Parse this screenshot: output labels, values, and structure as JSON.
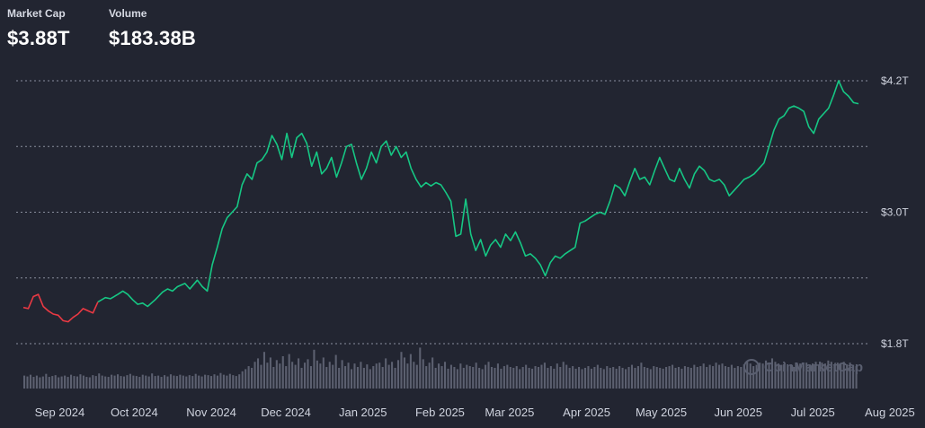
{
  "stats": {
    "market_cap_label": "Market Cap",
    "market_cap_value": "$3.88T",
    "volume_label": "Volume",
    "volume_value": "$183.38B"
  },
  "watermark": "CoinMarketCap",
  "colors": {
    "up": "#16c784",
    "down": "#ea3943",
    "grid": "#8a8f9e",
    "volume": "#5c6070"
  },
  "chart_data": {
    "type": "line",
    "y_ticks": [
      "$4.2T",
      "$3.0T",
      "$1.8T"
    ],
    "y_tick_values": [
      4.2,
      3.0,
      1.8
    ],
    "ylim": [
      1.8,
      4.2
    ],
    "x_ticks": [
      "Sep 2024",
      "Oct 2024",
      "Nov 2024",
      "Dec 2024",
      "Jan 2025",
      "Feb 2025",
      "Mar 2025",
      "Apr 2025",
      "May 2025",
      "Jun 2025",
      "Jul 2025",
      "Aug 2025"
    ],
    "x_tick_days": [
      11,
      41,
      72,
      102,
      133,
      164,
      192,
      223,
      253,
      284,
      314,
      345
    ],
    "grid": true,
    "series": [
      {
        "points": [
          [
            0,
            2.13
          ],
          [
            2,
            2.12
          ],
          [
            4,
            2.23
          ],
          [
            6,
            2.25
          ],
          [
            8,
            2.14
          ],
          [
            10,
            2.1
          ],
          [
            12,
            2.07
          ],
          [
            14,
            2.06
          ],
          [
            16,
            2.01
          ],
          [
            18,
            2.0
          ],
          [
            20,
            2.04
          ],
          [
            22,
            2.07
          ],
          [
            24,
            2.12
          ],
          [
            26,
            2.1
          ],
          [
            28,
            2.08
          ],
          [
            30,
            2.18
          ],
          [
            33,
            2.22
          ],
          [
            35,
            2.21
          ],
          [
            38,
            2.25
          ],
          [
            40,
            2.28
          ],
          [
            42,
            2.25
          ],
          [
            44,
            2.2
          ],
          [
            46,
            2.16
          ],
          [
            48,
            2.17
          ],
          [
            50,
            2.14
          ],
          [
            53,
            2.2
          ],
          [
            56,
            2.27
          ],
          [
            58,
            2.3
          ],
          [
            60,
            2.28
          ],
          [
            62,
            2.32
          ],
          [
            65,
            2.35
          ],
          [
            67,
            2.3
          ],
          [
            70,
            2.38
          ],
          [
            72,
            2.32
          ],
          [
            74,
            2.28
          ],
          [
            76,
            2.52
          ],
          [
            78,
            2.68
          ],
          [
            80,
            2.85
          ],
          [
            82,
            2.95
          ],
          [
            84,
            3.0
          ],
          [
            86,
            3.05
          ],
          [
            88,
            3.25
          ],
          [
            90,
            3.35
          ],
          [
            92,
            3.3
          ],
          [
            94,
            3.45
          ],
          [
            96,
            3.48
          ],
          [
            98,
            3.55
          ],
          [
            100,
            3.7
          ],
          [
            102,
            3.62
          ],
          [
            104,
            3.48
          ],
          [
            106,
            3.72
          ],
          [
            108,
            3.5
          ],
          [
            110,
            3.68
          ],
          [
            112,
            3.72
          ],
          [
            114,
            3.63
          ],
          [
            116,
            3.42
          ],
          [
            118,
            3.55
          ],
          [
            120,
            3.35
          ],
          [
            122,
            3.4
          ],
          [
            124,
            3.5
          ],
          [
            126,
            3.32
          ],
          [
            128,
            3.45
          ],
          [
            130,
            3.6
          ],
          [
            132,
            3.62
          ],
          [
            134,
            3.45
          ],
          [
            136,
            3.3
          ],
          [
            138,
            3.4
          ],
          [
            140,
            3.55
          ],
          [
            142,
            3.45
          ],
          [
            144,
            3.6
          ],
          [
            146,
            3.65
          ],
          [
            148,
            3.52
          ],
          [
            150,
            3.6
          ],
          [
            152,
            3.5
          ],
          [
            154,
            3.55
          ],
          [
            156,
            3.4
          ],
          [
            158,
            3.3
          ],
          [
            160,
            3.23
          ],
          [
            162,
            3.27
          ],
          [
            164,
            3.24
          ],
          [
            166,
            3.27
          ],
          [
            168,
            3.25
          ],
          [
            170,
            3.18
          ],
          [
            172,
            3.1
          ],
          [
            174,
            2.78
          ],
          [
            176,
            2.8
          ],
          [
            178,
            3.12
          ],
          [
            180,
            2.8
          ],
          [
            182,
            2.65
          ],
          [
            184,
            2.75
          ],
          [
            186,
            2.6
          ],
          [
            188,
            2.7
          ],
          [
            190,
            2.75
          ],
          [
            192,
            2.68
          ],
          [
            194,
            2.8
          ],
          [
            196,
            2.74
          ],
          [
            198,
            2.82
          ],
          [
            200,
            2.72
          ],
          [
            202,
            2.6
          ],
          [
            204,
            2.62
          ],
          [
            206,
            2.58
          ],
          [
            208,
            2.52
          ],
          [
            210,
            2.42
          ],
          [
            212,
            2.54
          ],
          [
            214,
            2.6
          ],
          [
            216,
            2.58
          ],
          [
            218,
            2.62
          ],
          [
            220,
            2.65
          ],
          [
            222,
            2.68
          ],
          [
            224,
            2.9
          ],
          [
            226,
            2.92
          ],
          [
            228,
            2.95
          ],
          [
            230,
            2.98
          ],
          [
            232,
            3.0
          ],
          [
            234,
            2.98
          ],
          [
            236,
            3.1
          ],
          [
            238,
            3.25
          ],
          [
            240,
            3.22
          ],
          [
            242,
            3.15
          ],
          [
            244,
            3.28
          ],
          [
            246,
            3.4
          ],
          [
            248,
            3.3
          ],
          [
            250,
            3.32
          ],
          [
            252,
            3.25
          ],
          [
            254,
            3.38
          ],
          [
            256,
            3.5
          ],
          [
            258,
            3.4
          ],
          [
            260,
            3.3
          ],
          [
            262,
            3.28
          ],
          [
            264,
            3.4
          ],
          [
            266,
            3.3
          ],
          [
            268,
            3.22
          ],
          [
            270,
            3.35
          ],
          [
            272,
            3.42
          ],
          [
            274,
            3.38
          ],
          [
            276,
            3.3
          ],
          [
            278,
            3.28
          ],
          [
            280,
            3.3
          ],
          [
            282,
            3.25
          ],
          [
            284,
            3.15
          ],
          [
            286,
            3.2
          ],
          [
            288,
            3.25
          ],
          [
            290,
            3.3
          ],
          [
            292,
            3.32
          ],
          [
            294,
            3.35
          ],
          [
            296,
            3.4
          ],
          [
            298,
            3.45
          ],
          [
            300,
            3.6
          ],
          [
            302,
            3.75
          ],
          [
            304,
            3.85
          ],
          [
            306,
            3.88
          ],
          [
            308,
            3.95
          ],
          [
            310,
            3.97
          ],
          [
            312,
            3.95
          ],
          [
            314,
            3.92
          ],
          [
            316,
            3.78
          ],
          [
            318,
            3.72
          ],
          [
            320,
            3.85
          ],
          [
            322,
            3.9
          ],
          [
            324,
            3.95
          ],
          [
            326,
            4.07
          ],
          [
            328,
            4.2
          ],
          [
            330,
            4.1
          ],
          [
            332,
            4.06
          ],
          [
            334,
            4.0
          ],
          [
            336,
            3.99
          ]
        ]
      }
    ],
    "down_until_day": 30,
    "volume_bars": [
      0.3,
      0.28,
      0.32,
      0.27,
      0.3,
      0.26,
      0.28,
      0.34,
      0.27,
      0.29,
      0.31,
      0.26,
      0.28,
      0.3,
      0.27,
      0.32,
      0.29,
      0.28,
      0.33,
      0.3,
      0.27,
      0.26,
      0.31,
      0.29,
      0.35,
      0.3,
      0.28,
      0.27,
      0.32,
      0.3,
      0.33,
      0.29,
      0.28,
      0.31,
      0.34,
      0.3,
      0.29,
      0.27,
      0.32,
      0.3,
      0.28,
      0.35,
      0.29,
      0.3,
      0.27,
      0.31,
      0.28,
      0.33,
      0.3,
      0.29,
      0.32,
      0.3,
      0.28,
      0.31,
      0.29,
      0.34,
      0.3,
      0.28,
      0.32,
      0.31,
      0.29,
      0.33,
      0.3,
      0.36,
      0.32,
      0.3,
      0.34,
      0.31,
      0.29,
      0.33,
      0.4,
      0.45,
      0.52,
      0.48,
      0.62,
      0.7,
      0.55,
      0.85,
      0.6,
      0.72,
      0.5,
      0.66,
      0.58,
      0.75,
      0.52,
      0.8,
      0.62,
      0.55,
      0.7,
      0.48,
      0.6,
      0.68,
      0.52,
      0.9,
      0.65,
      0.58,
      0.72,
      0.5,
      0.62,
      0.55,
      0.78,
      0.48,
      0.66,
      0.52,
      0.6,
      0.45,
      0.58,
      0.5,
      0.62,
      0.48,
      0.56,
      0.45,
      0.52,
      0.58,
      0.6,
      0.5,
      0.7,
      0.55,
      0.62,
      0.48,
      0.66,
      0.85,
      0.72,
      0.58,
      0.8,
      0.62,
      0.55,
      0.95,
      0.68,
      0.52,
      0.6,
      0.72,
      0.48,
      0.58,
      0.52,
      0.62,
      0.46,
      0.55,
      0.5,
      0.45,
      0.58,
      0.48,
      0.55,
      0.52,
      0.5,
      0.6,
      0.48,
      0.45,
      0.55,
      0.62,
      0.5,
      0.48,
      0.58,
      0.46,
      0.52,
      0.55,
      0.5,
      0.48,
      0.52,
      0.45,
      0.5,
      0.55,
      0.48,
      0.46,
      0.52,
      0.5,
      0.55,
      0.6,
      0.48,
      0.52,
      0.46,
      0.58,
      0.5,
      0.62,
      0.55,
      0.48,
      0.52,
      0.46,
      0.5,
      0.45,
      0.48,
      0.52,
      0.46,
      0.5,
      0.55,
      0.48,
      0.45,
      0.52,
      0.48,
      0.5,
      0.46,
      0.52,
      0.48,
      0.45,
      0.5,
      0.55,
      0.48,
      0.52,
      0.6,
      0.5,
      0.48,
      0.45,
      0.52,
      0.5,
      0.48,
      0.46,
      0.5,
      0.52,
      0.55,
      0.48,
      0.5,
      0.46,
      0.52,
      0.5,
      0.48,
      0.55,
      0.5,
      0.52,
      0.58,
      0.5,
      0.55,
      0.52,
      0.6,
      0.55,
      0.58,
      0.52,
      0.5,
      0.55,
      0.48,
      0.52,
      0.5,
      0.56,
      0.62,
      0.58,
      0.52,
      0.55,
      0.6,
      0.58,
      0.65,
      0.6,
      0.7,
      0.62,
      0.58,
      0.55,
      0.6,
      0.52,
      0.56,
      0.5,
      0.55,
      0.58,
      0.52,
      0.6,
      0.55,
      0.58,
      0.62,
      0.56,
      0.6,
      0.58,
      0.65,
      0.62,
      0.55,
      0.6,
      0.58,
      0.62,
      0.56,
      0.6,
      0.55,
      0.52
    ]
  }
}
